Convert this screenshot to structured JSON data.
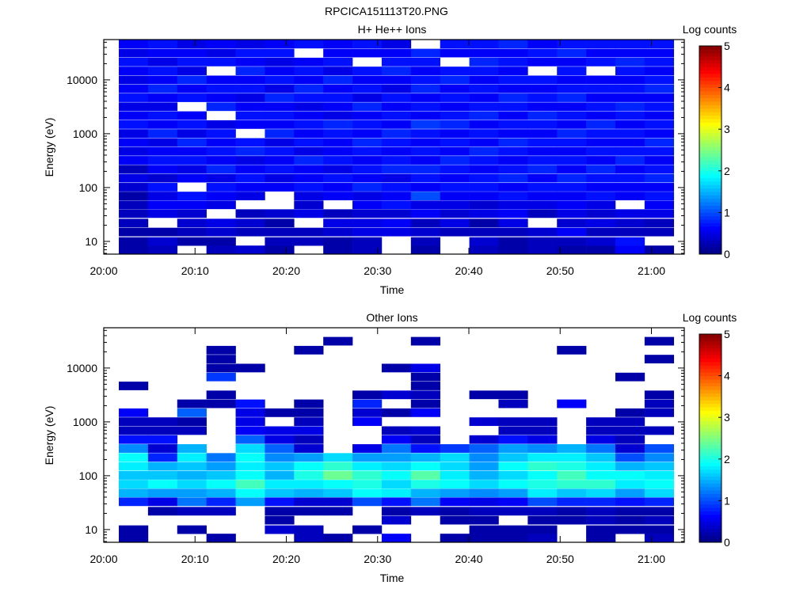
{
  "figure_title": "RPCICA151113T20.PNG",
  "chart_data": [
    {
      "type": "heatmap",
      "title": "H+ He++ Ions",
      "xlabel": "Time",
      "ylabel": "Energy (eV)",
      "colorbar_label": "Log counts",
      "colorbar_ticks": [
        "0",
        "1",
        "2",
        "3",
        "4",
        "5"
      ],
      "color_range": [
        0,
        5
      ],
      "colormap": "jet",
      "yscale": "log",
      "ylim": [
        5.8,
        56000
      ],
      "xlim_min": [
        0,
        63.6
      ],
      "x_ticks": [
        "20:00",
        "20:10",
        "20:20",
        "20:30",
        "20:40",
        "20:50",
        "21:00"
      ],
      "y_ticks": [
        "10",
        "100",
        "1000",
        "10000"
      ],
      "time_start_min": [
        1.65,
        4.85,
        8.05,
        11.25,
        14.45,
        17.65,
        20.85,
        24.05,
        27.25,
        30.45,
        33.65,
        36.85,
        40.05,
        43.25,
        46.45,
        49.65,
        52.85,
        56.05,
        59.25
      ],
      "time_step_min": 3.2,
      "energy_eV": [
        7,
        10,
        15,
        22,
        33,
        48,
        70,
        102,
        150,
        220,
        322,
        472,
        692,
        1014,
        1486,
        2178,
        3192,
        4677,
        6855,
        10046,
        14723,
        21577,
        31623,
        46345
      ],
      "values": [
        [
          0.2,
          0.2,
          0.2,
          0.3,
          0.3,
          0.3,
          0.2,
          0.4,
          0.5,
          0.3,
          0.6,
          0.5,
          0.6,
          0.5,
          0.7,
          0.6,
          0.5,
          0.7,
          0.6,
          0.5,
          0.6,
          0.7,
          0.5,
          0.6
        ],
        [
          0.3,
          0.4,
          0.2,
          null,
          0.5,
          0.6,
          0.5,
          0.7,
          0.4,
          0.6,
          0.7,
          0.6,
          0.5,
          0.8,
          0.6,
          0.7,
          0.5,
          0.6,
          0.8,
          0.6,
          0.7,
          0.5,
          0.6,
          0.7
        ],
        [
          null,
          0.2,
          0.3,
          0.4,
          0.4,
          0.6,
          0.7,
          null,
          0.6,
          0.5,
          0.7,
          0.6,
          0.8,
          0.5,
          0.7,
          0.6,
          null,
          0.7,
          0.6,
          0.8,
          0.5,
          0.7,
          0.6,
          0.5
        ],
        [
          0.3,
          0.2,
          0.4,
          0.5,
          null,
          0.5,
          0.6,
          0.7,
          0.5,
          0.8,
          0.6,
          0.7,
          0.6,
          0.7,
          0.5,
          null,
          0.8,
          0.6,
          0.7,
          0.6,
          null,
          0.7,
          0.5,
          0.6
        ],
        [
          0.4,
          null,
          0.3,
          0.4,
          0.3,
          null,
          0.5,
          0.6,
          0.7,
          0.6,
          0.5,
          0.8,
          0.7,
          null,
          0.6,
          0.7,
          0.6,
          0.5,
          0.7,
          0.6,
          0.8,
          0.6,
          0.7,
          0.5
        ],
        [
          0.2,
          0.3,
          0.3,
          0.2,
          0.4,
          null,
          null,
          0.6,
          0.5,
          0.7,
          0.6,
          0.7,
          0.5,
          0.8,
          0.6,
          0.7,
          0.6,
          0.8,
          0.5,
          0.7,
          0.6,
          0.5,
          0.7,
          0.6
        ],
        [
          null,
          0.3,
          0.3,
          null,
          0.5,
          0.4,
          0.5,
          0.7,
          0.6,
          0.6,
          0.8,
          0.5,
          0.7,
          0.6,
          0.7,
          0.6,
          0.5,
          0.7,
          0.8,
          0.6,
          0.7,
          0.6,
          null,
          0.7
        ],
        [
          0.2,
          0.2,
          0.4,
          0.5,
          0.3,
          null,
          0.6,
          0.6,
          0.7,
          0.5,
          0.7,
          0.6,
          0.6,
          0.7,
          0.8,
          0.5,
          0.6,
          0.7,
          0.6,
          0.8,
          0.5,
          0.7,
          0.6,
          0.6
        ],
        [
          0.3,
          0.3,
          0.5,
          0.5,
          0.4,
          0.6,
          0.5,
          0.8,
          0.6,
          0.7,
          0.6,
          0.7,
          0.8,
          0.6,
          0.7,
          0.6,
          0.8,
          0.5,
          0.7,
          0.6,
          0.7,
          null,
          0.6,
          0.7
        ],
        [
          null,
          null,
          0.5,
          0.6,
          0.4,
          0.7,
          0.6,
          0.7,
          0.5,
          0.8,
          0.7,
          0.6,
          0.7,
          0.8,
          0.6,
          0.7,
          0.6,
          0.7,
          0.5,
          0.6,
          0.8,
          0.7,
          0.6,
          0.5
        ],
        [
          0.2,
          0.3,
          0.4,
          0.3,
          0.6,
          0.5,
          1.0,
          0.6,
          0.7,
          0.8,
          0.6,
          0.7,
          0.6,
          0.7,
          0.9,
          0.6,
          0.7,
          0.6,
          0.8,
          0.7,
          0.6,
          0.7,
          0.8,
          null
        ],
        [
          null,
          null,
          0.3,
          0.5,
          0.4,
          0.5,
          0.6,
          0.7,
          0.6,
          0.7,
          0.8,
          0.6,
          0.7,
          0.6,
          0.8,
          0.7,
          0.6,
          0.7,
          0.6,
          0.8,
          0.7,
          null,
          0.6,
          0.7
        ],
        [
          0.3,
          0.4,
          0.3,
          0.2,
          0.5,
          0.4,
          0.6,
          0.7,
          0.7,
          0.6,
          0.7,
          0.8,
          0.6,
          0.7,
          0.6,
          0.8,
          0.7,
          0.6,
          0.7,
          0.6,
          0.7,
          0.8,
          0.6,
          0.7
        ],
        [
          0.2,
          0.2,
          0.3,
          0.5,
          0.6,
          0.5,
          0.7,
          0.6,
          0.8,
          0.7,
          0.6,
          0.7,
          0.8,
          0.6,
          0.7,
          0.6,
          0.7,
          0.8,
          0.6,
          0.7,
          0.6,
          0.7,
          0.6,
          0.8
        ],
        [
          0.3,
          0.3,
          0.4,
          null,
          0.3,
          0.5,
          0.6,
          0.7,
          0.6,
          0.8,
          0.7,
          0.6,
          0.7,
          0.6,
          0.7,
          0.8,
          0.6,
          0.7,
          0.6,
          0.7,
          null,
          0.6,
          0.7,
          0.6
        ],
        [
          0.2,
          0.3,
          0.6,
          0.4,
          0.5,
          0.6,
          0.6,
          0.7,
          0.8,
          0.6,
          0.7,
          0.6,
          0.7,
          0.8,
          0.6,
          0.7,
          0.6,
          0.8,
          0.7,
          0.6,
          0.7,
          0.6,
          0.8,
          0.7
        ],
        [
          0.2,
          0.4,
          0.3,
          0.5,
          0.4,
          0.5,
          0.7,
          0.6,
          0.7,
          0.8,
          0.6,
          0.7,
          0.6,
          0.7,
          0.8,
          0.6,
          0.7,
          0.6,
          0.7,
          0.6,
          null,
          0.7,
          0.6,
          0.7
        ],
        [
          0.6,
          0.7,
          0.3,
          0.4,
          0.5,
          null,
          0.6,
          0.6,
          0.7,
          0.6,
          0.8,
          0.7,
          0.6,
          0.7,
          0.6,
          0.7,
          0.8,
          0.6,
          0.7,
          0.6,
          0.7,
          0.8,
          0.6,
          0.7
        ],
        [
          0.2,
          null,
          0.3,
          0.3,
          0.5,
          0.6,
          0.7,
          0.6,
          0.8,
          0.7,
          0.6,
          0.7,
          0.8,
          0.6,
          0.7,
          0.6,
          0.7,
          0.6,
          0.8,
          0.7,
          0.6,
          0.7,
          0.6,
          0.7
        ]
      ]
    },
    {
      "type": "heatmap",
      "title": "Other Ions",
      "xlabel": "Time",
      "ylabel": "Energy (eV)",
      "colorbar_label": "Log counts",
      "colorbar_ticks": [
        "0",
        "1",
        "2",
        "3",
        "4",
        "5"
      ],
      "color_range": [
        0,
        5
      ],
      "colormap": "jet",
      "yscale": "log",
      "ylim": [
        5.8,
        56000
      ],
      "xlim_min": [
        0,
        63.6
      ],
      "x_ticks": [
        "20:00",
        "20:10",
        "20:20",
        "20:30",
        "20:40",
        "20:50",
        "21:00"
      ],
      "y_ticks": [
        "10",
        "100",
        "1000",
        "10000"
      ],
      "time_start_min": [
        1.65,
        4.85,
        8.05,
        11.25,
        14.45,
        17.65,
        20.85,
        24.05,
        27.25,
        30.45,
        33.65,
        36.85,
        40.05,
        43.25,
        46.45,
        49.65,
        52.85,
        56.05,
        59.25
      ],
      "time_step_min": 3.2,
      "energy_eV": [
        7,
        10,
        15,
        22,
        33,
        48,
        70,
        102,
        150,
        220,
        322,
        472,
        692,
        1014,
        1486,
        2178,
        3192,
        4677,
        6855,
        10046,
        14723,
        21577,
        31623,
        46345
      ],
      "values": [
        [
          0.2,
          0.2,
          null,
          null,
          0.8,
          1.5,
          1.7,
          1.6,
          1.8,
          1.9,
          1.3,
          0.7,
          0.3,
          0.3,
          0.6,
          null,
          null,
          0.2,
          null,
          null,
          null,
          null,
          null,
          null
        ],
        [
          null,
          null,
          null,
          0.2,
          0.5,
          1.4,
          1.9,
          1.6,
          1.5,
          0.8,
          0.4,
          0.7,
          0.3,
          0.3,
          null,
          null,
          null,
          null,
          null,
          null,
          null,
          null,
          null,
          null
        ],
        [
          null,
          0.2,
          null,
          0.3,
          1.2,
          1.4,
          1.7,
          1.5,
          1.6,
          1.8,
          1.5,
          null,
          0.3,
          0.2,
          1.1,
          0.2,
          null,
          null,
          null,
          null,
          null,
          null,
          null,
          null
        ],
        [
          0.2,
          null,
          null,
          0.3,
          0.8,
          1.5,
          1.9,
          1.6,
          1.4,
          1.2,
          null,
          null,
          null,
          null,
          null,
          0.2,
          0.2,
          null,
          0.9,
          0.2,
          0.2,
          0.2,
          null,
          null
        ],
        [
          null,
          null,
          null,
          null,
          1.4,
          1.9,
          2.2,
          1.9,
          1.8,
          1.9,
          1.7,
          1.1,
          0.6,
          0.5,
          0.5,
          0.7,
          null,
          null,
          null,
          0.2,
          null,
          null,
          null,
          null
        ],
        [
          null,
          0.4,
          0.2,
          0.2,
          0.7,
          1.6,
          1.8,
          1.5,
          1.6,
          1.3,
          1.1,
          0.5,
          0.5,
          null,
          0.2,
          null,
          null,
          null,
          null,
          null,
          null,
          null,
          null,
          null
        ],
        [
          0.3,
          0.3,
          null,
          0.2,
          0.4,
          1.5,
          1.8,
          2.0,
          1.9,
          1.4,
          0.4,
          0.3,
          0.5,
          0.3,
          0.2,
          0.2,
          null,
          null,
          null,
          null,
          null,
          0.2,
          null,
          null
        ],
        [
          0.2,
          null,
          null,
          0.2,
          0.4,
          1.6,
          1.9,
          2.4,
          2.1,
          1.7,
          null,
          null,
          null,
          null,
          null,
          null,
          null,
          null,
          null,
          null,
          null,
          null,
          0.2,
          null
        ],
        [
          null,
          0.2,
          null,
          null,
          1.0,
          1.9,
          2.0,
          2.1,
          1.8,
          1.4,
          0.5,
          null,
          null,
          0.6,
          0.4,
          0.8,
          0.2,
          null,
          null,
          null,
          null,
          null,
          null,
          null
        ],
        [
          0.6,
          null,
          0.4,
          0.2,
          0.7,
          1.8,
          1.7,
          1.9,
          1.7,
          1.4,
          1.2,
          0.6,
          0.3,
          null,
          0.2,
          null,
          0.4,
          null,
          null,
          0.2,
          null,
          null,
          null,
          null
        ],
        [
          null,
          null,
          null,
          0.3,
          1.2,
          1.5,
          2.0,
          2.3,
          1.9,
          1.5,
          0.7,
          0.3,
          0.4,
          null,
          0.6,
          0.2,
          0.3,
          0.2,
          0.2,
          0.5,
          null,
          null,
          0.2,
          null
        ],
        [
          0.2,
          null,
          0.2,
          0.2,
          0.6,
          1.4,
          1.9,
          1.8,
          1.7,
          1.7,
          0.9,
          null,
          null,
          null,
          null,
          null,
          null,
          null,
          null,
          null,
          null,
          null,
          null,
          null
        ],
        [
          0.2,
          0.2,
          0.2,
          0.3,
          0.5,
          1.3,
          1.7,
          1.5,
          1.4,
          1.3,
          1.1,
          0.4,
          null,
          0.4,
          null,
          null,
          0.2,
          null,
          null,
          null,
          null,
          null,
          null,
          null
        ],
        [
          0.2,
          0.2,
          null,
          0.3,
          0.6,
          1.4,
          1.9,
          1.7,
          1.9,
          1.6,
          1.4,
          0.7,
          0.3,
          0.3,
          null,
          0.3,
          0.2,
          null,
          null,
          null,
          null,
          null,
          null,
          null
        ],
        [
          0.3,
          0.2,
          0.2,
          0.3,
          1.0,
          1.8,
          2.0,
          1.9,
          2.1,
          1.8,
          1.3,
          0.5,
          0.3,
          0.3,
          null,
          null,
          null,
          null,
          null,
          null,
          null,
          null,
          null,
          null
        ],
        [
          null,
          null,
          0.2,
          0.2,
          0.8,
          1.6,
          2.1,
          2.2,
          2.0,
          1.8,
          1.5,
          null,
          null,
          null,
          null,
          0.6,
          null,
          null,
          null,
          null,
          null,
          0.2,
          null,
          null
        ],
        [
          0.2,
          0.2,
          0.3,
          0.3,
          0.8,
          1.7,
          2.1,
          1.9,
          1.8,
          1.6,
          1.2,
          0.5,
          0.3,
          0.3,
          null,
          null,
          null,
          null,
          null,
          null,
          null,
          null,
          null,
          null
        ],
        [
          null,
          0.2,
          0.2,
          0.2,
          0.7,
          1.4,
          1.8,
          1.9,
          1.5,
          1.0,
          0.4,
          0.3,
          0.3,
          0.3,
          0.2,
          null,
          null,
          null,
          0.2,
          null,
          null,
          null,
          null,
          null
        ],
        [
          0.3,
          0.2,
          0.3,
          0.2,
          0.8,
          1.7,
          1.9,
          1.8,
          1.6,
          1.3,
          1.0,
          null,
          0.3,
          null,
          0.3,
          0.3,
          0.2,
          null,
          null,
          null,
          0.2,
          null,
          0.2,
          null
        ]
      ]
    }
  ]
}
